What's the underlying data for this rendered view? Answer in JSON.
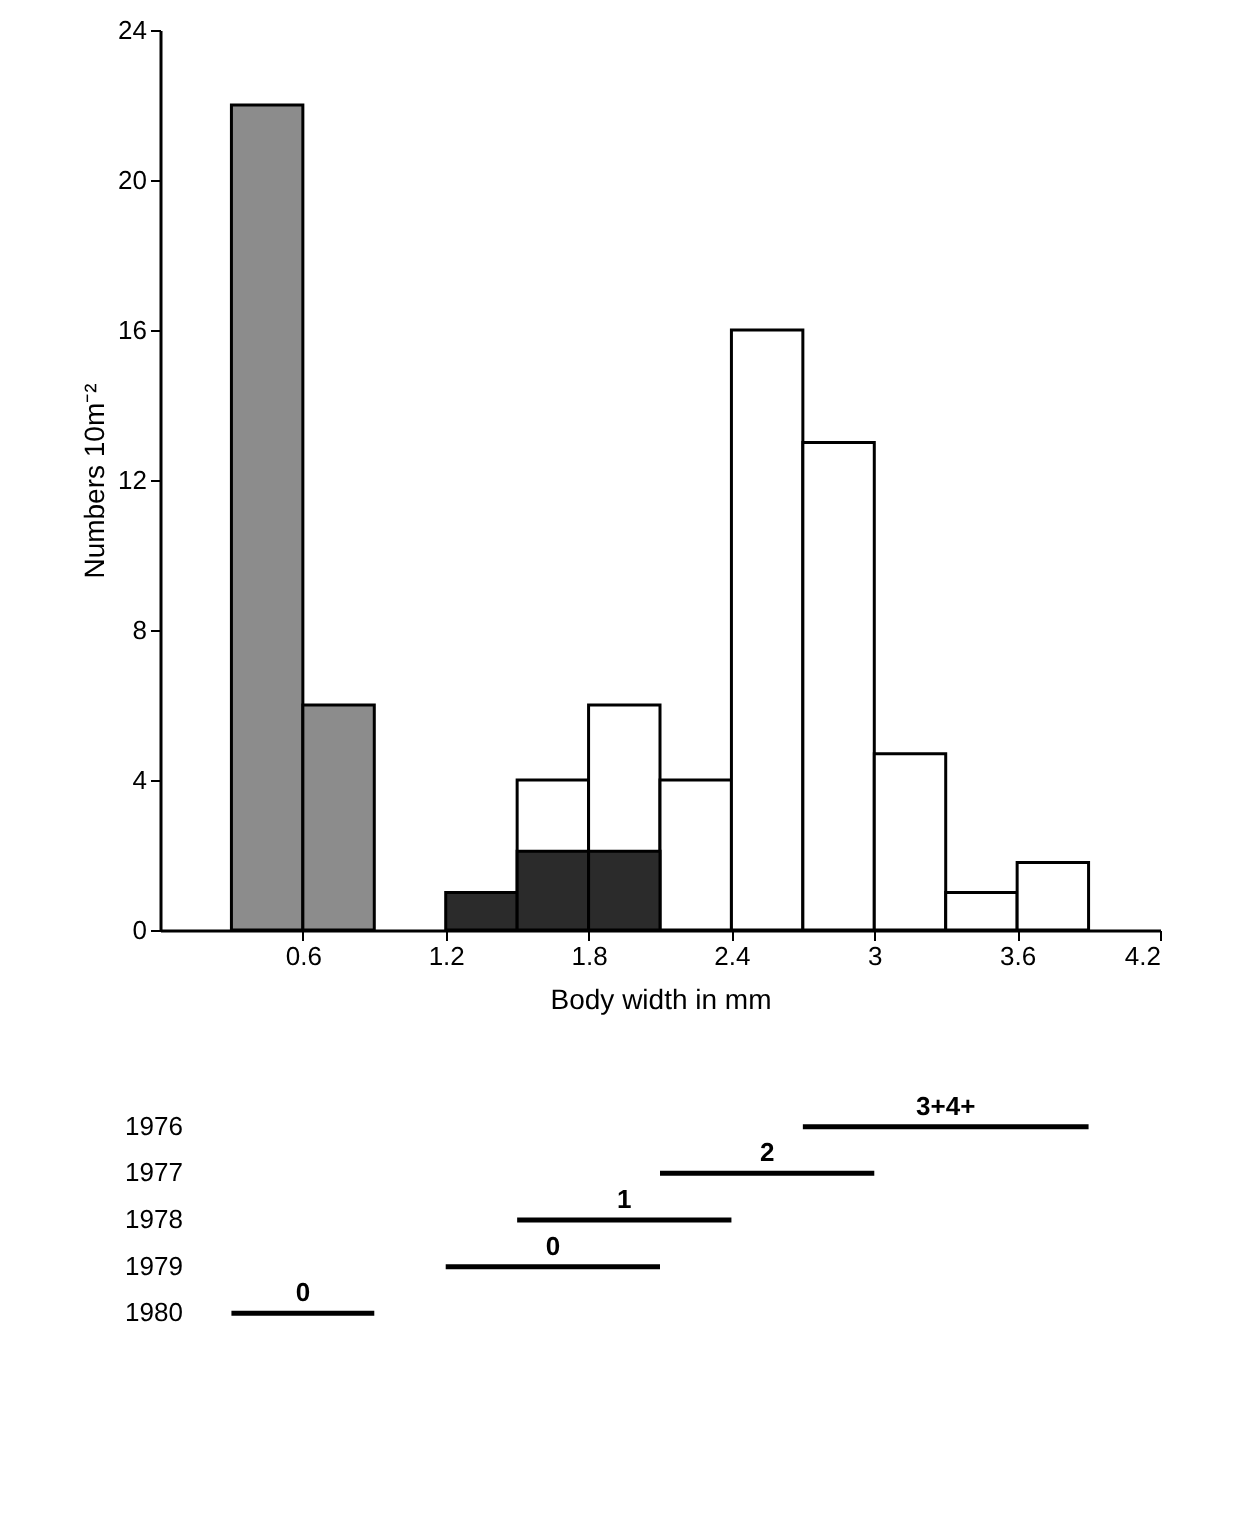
{
  "chart_data": [
    {
      "type": "histogram",
      "xlabel": "Body width in mm",
      "ylabel": "Numbers 10m⁻²",
      "bins": [
        0.3,
        0.6,
        0.9,
        1.2,
        1.5,
        1.8,
        2.1,
        2.4,
        2.7,
        3.0,
        3.3,
        3.6,
        3.9
      ],
      "series": [
        {
          "color": "#ffffff",
          "values": [
            null,
            null,
            null,
            null,
            4,
            6,
            4,
            16,
            13,
            4.7,
            1,
            1.8
          ]
        },
        {
          "color": "#8c8c8c",
          "values": [
            22,
            6,
            null,
            null,
            null,
            null,
            null,
            null,
            null,
            null,
            null,
            null
          ]
        },
        {
          "color": "#2b2b2b",
          "values": [
            null,
            null,
            null,
            1,
            2.1,
            2.1,
            null,
            null,
            null,
            null,
            null,
            null
          ]
        }
      ],
      "xlim": [
        0,
        4.2
      ],
      "ylim": [
        0,
        24
      ],
      "xticks": [
        0.6,
        1.2,
        1.8,
        2.4,
        3.0,
        3.6,
        4.2
      ],
      "yticks": [
        0,
        4,
        8,
        12,
        16,
        20,
        24
      ]
    },
    {
      "type": "bar",
      "orientation": "horizontal",
      "categories": [
        "1976",
        "1977",
        "1978",
        "1979",
        "1980"
      ],
      "base": [
        2.7,
        2.1,
        1.5,
        1.2,
        0.3
      ],
      "values": [
        1.2,
        0.9,
        0.9,
        0.9,
        0.6
      ],
      "annotations": [
        {
          "text": "3+4+",
          "x": 3.3,
          "y": "1976"
        },
        {
          "text": "2",
          "x": 2.55,
          "y": "1977"
        },
        {
          "text": "1",
          "x": 1.95,
          "y": "1978"
        },
        {
          "text": "0",
          "x": 1.65,
          "y": "1979"
        },
        {
          "text": "0",
          "x": 0.6,
          "y": "1980"
        }
      ],
      "color": "#000000",
      "xlim": [
        0,
        4.2
      ],
      "xticks": [
        0.6,
        1.2,
        1.8,
        2.4,
        3.0,
        3.6,
        4.2
      ],
      "tick_labels": "y"
    }
  ]
}
